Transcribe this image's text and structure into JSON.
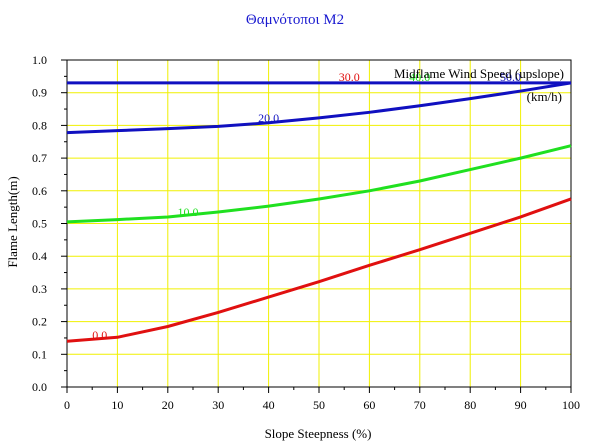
{
  "chart_data": {
    "type": "line",
    "title": "Θαμνότοποι M2",
    "xlabel": "Slope Steepness (%)",
    "ylabel": "Flame Length(m)",
    "xlim": [
      0,
      100
    ],
    "ylim": [
      0,
      1.0
    ],
    "x_ticks": [
      "0",
      "10",
      "20",
      "30",
      "40",
      "50",
      "60",
      "70",
      "80",
      "90",
      "100"
    ],
    "y_ticks": [
      "0.0",
      "0.1",
      "0.2",
      "0.3",
      "0.4",
      "0.5",
      "0.6",
      "0.7",
      "0.8",
      "0.9",
      "1.0"
    ],
    "grid": true,
    "legend_title": "Midflame Wind Speed (upslope)",
    "legend_units": "(km/h)",
    "x": [
      0,
      10,
      20,
      30,
      40,
      50,
      60,
      70,
      80,
      90,
      100
    ],
    "series": [
      {
        "name": "0.0",
        "color": "#e01010",
        "values": [
          0.14,
          0.152,
          0.185,
          0.228,
          0.275,
          0.322,
          0.372,
          0.42,
          0.47,
          0.52,
          0.575
        ]
      },
      {
        "name": "10.0",
        "color": "#20e020",
        "values": [
          0.505,
          0.512,
          0.52,
          0.535,
          0.553,
          0.575,
          0.6,
          0.63,
          0.665,
          0.7,
          0.738
        ]
      },
      {
        "name": "20.0",
        "color": "#1010c0",
        "values": [
          0.778,
          0.784,
          0.79,
          0.797,
          0.808,
          0.823,
          0.84,
          0.86,
          0.882,
          0.905,
          0.93
        ]
      },
      {
        "name": "30.0",
        "color": "#1010c0",
        "values": [
          0.93,
          0.93,
          0.93,
          0.93,
          0.93,
          0.93,
          0.93,
          0.93,
          0.93,
          0.93,
          0.93
        ]
      }
    ],
    "series_label_colors": {
      "0.0": "#e01010",
      "10.0": "#20e020",
      "20.0": "#1010c0",
      "30.0": "#e01010",
      "40.0": "#20e020",
      "50.0": "#1010c0"
    },
    "extra_labels": [
      "30.0",
      "40.0",
      "50.0"
    ]
  }
}
